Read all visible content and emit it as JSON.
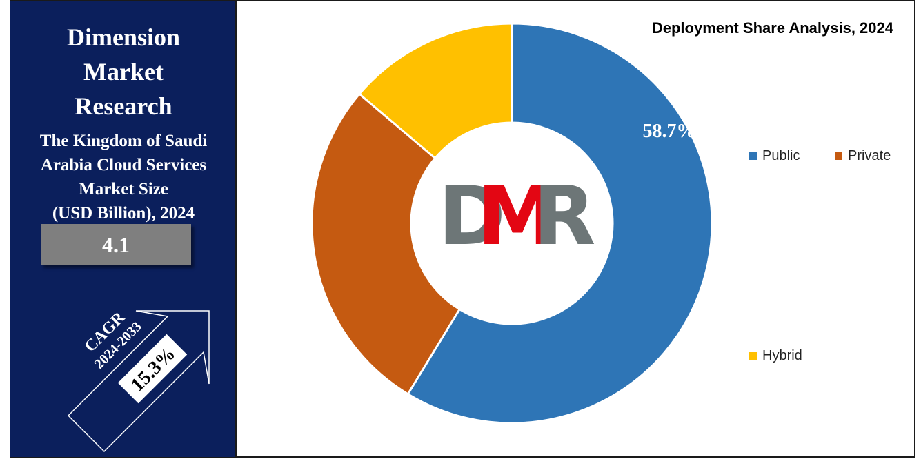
{
  "left_panel": {
    "brand_lines": [
      "Dimension",
      "Market",
      "Research"
    ],
    "subtitle_lines": [
      "The Kingdom of Saudi",
      "Arabia Cloud Services",
      "Market Size",
      "(USD Billion), 2024"
    ],
    "market_value": "4.1",
    "cagr_label": "CAGR",
    "cagr_period": "2024-2033",
    "cagr_value": "15.3%"
  },
  "logo": {
    "text_d": "D",
    "text_m": "M",
    "text_r": "R"
  },
  "colors": {
    "panel_bg": "#0b1f5c",
    "public": "#2e75b6",
    "private": "#c55a11",
    "hybrid": "#ffc000",
    "logo_gray": "#6d7677",
    "logo_red": "#e30613"
  },
  "chart_data": {
    "type": "pie",
    "variant": "donut",
    "title": "Deployment Share Analysis, 2024",
    "categories": [
      "Public",
      "Private",
      "Hybrid"
    ],
    "values": [
      58.7,
      27.5,
      13.8
    ],
    "data_labels": [
      "58.7%",
      "",
      ""
    ],
    "legend_position": "right"
  }
}
